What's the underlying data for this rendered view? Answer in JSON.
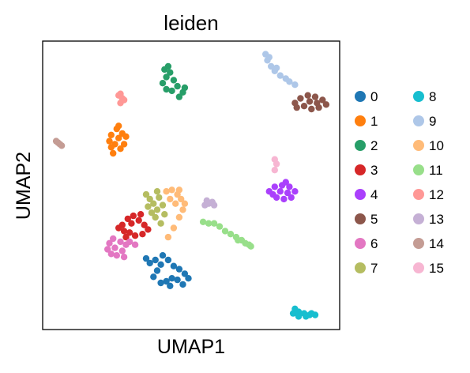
{
  "chart_data": {
    "type": "scatter",
    "title": "leiden",
    "xlabel": "UMAP1",
    "ylabel": "UMAP2",
    "grid": false,
    "legend_placement": "right",
    "legend_columns": 2,
    "series": [
      {
        "name": "0",
        "color": "#1f77b4",
        "points": [
          [
            4.2,
            -4.8
          ],
          [
            4.4,
            -4.4
          ],
          [
            4.6,
            -4.0
          ],
          [
            4.3,
            -3.7
          ],
          [
            4.0,
            -3.9
          ],
          [
            3.8,
            -3.6
          ],
          [
            4.7,
            -3.4
          ],
          [
            5.0,
            -3.7
          ],
          [
            5.3,
            -4.1
          ],
          [
            5.6,
            -4.3
          ],
          [
            5.9,
            -4.6
          ],
          [
            5.2,
            -4.9
          ],
          [
            4.9,
            -5.1
          ],
          [
            4.6,
            -5.2
          ],
          [
            5.5,
            -5.0
          ],
          [
            6.1,
            -4.9
          ],
          [
            5.8,
            -5.3
          ],
          [
            5.1,
            -5.4
          ]
        ]
      },
      {
        "name": "1",
        "color": "#ff7f0e",
        "points": [
          [
            2.1,
            3.9
          ],
          [
            2.3,
            4.3
          ],
          [
            2.5,
            4.6
          ],
          [
            2.2,
            4.9
          ],
          [
            1.9,
            4.5
          ],
          [
            1.8,
            4.1
          ],
          [
            2.4,
            3.6
          ],
          [
            2.0,
            3.3
          ],
          [
            2.6,
            3.9
          ],
          [
            2.7,
            4.4
          ],
          [
            2.3,
            5.1
          ],
          [
            1.9,
            3.7
          ]
        ]
      },
      {
        "name": "2",
        "color": "#279e68",
        "points": [
          [
            4.7,
            7.9
          ],
          [
            4.9,
            8.3
          ],
          [
            5.1,
            8.6
          ],
          [
            4.8,
            8.8
          ],
          [
            5.3,
            8.1
          ],
          [
            5.5,
            7.7
          ],
          [
            5.8,
            7.3
          ],
          [
            5.6,
            7.0
          ],
          [
            5.2,
            7.4
          ],
          [
            4.9,
            7.5
          ],
          [
            5.9,
            7.6
          ],
          [
            5.0,
            9.0
          ]
        ]
      },
      {
        "name": "3",
        "color": "#d62728",
        "points": [
          [
            2.5,
            -1.4
          ],
          [
            2.8,
            -1.0
          ],
          [
            3.1,
            -0.8
          ],
          [
            3.4,
            -1.1
          ],
          [
            3.7,
            -1.4
          ],
          [
            3.9,
            -1.7
          ],
          [
            3.6,
            -2.0
          ],
          [
            3.2,
            -2.1
          ],
          [
            2.9,
            -1.9
          ],
          [
            2.6,
            -1.8
          ],
          [
            2.3,
            -1.6
          ],
          [
            3.0,
            -1.3
          ],
          [
            3.5,
            -0.7
          ],
          [
            2.7,
            -2.2
          ]
        ]
      },
      {
        "name": "4",
        "color": "#aa40fc",
        "points": [
          [
            10.5,
            0.8
          ],
          [
            10.8,
            1.1
          ],
          [
            11.2,
            1.2
          ],
          [
            11.6,
            1.1
          ],
          [
            11.9,
            0.8
          ],
          [
            11.7,
            0.4
          ],
          [
            11.3,
            0.3
          ],
          [
            10.9,
            0.4
          ],
          [
            11.1,
            0.8
          ],
          [
            11.5,
            0.7
          ],
          [
            10.7,
            0.6
          ],
          [
            11.4,
            1.4
          ]
        ]
      },
      {
        "name": "5",
        "color": "#8c564b",
        "points": [
          [
            11.9,
            6.6
          ],
          [
            12.2,
            6.9
          ],
          [
            12.6,
            7.1
          ],
          [
            13.0,
            7.0
          ],
          [
            13.4,
            6.8
          ],
          [
            13.6,
            6.5
          ],
          [
            13.2,
            6.3
          ],
          [
            12.8,
            6.2
          ],
          [
            12.4,
            6.4
          ],
          [
            12.0,
            6.3
          ],
          [
            12.7,
            6.7
          ],
          [
            13.1,
            6.6
          ]
        ]
      },
      {
        "name": "6",
        "color": "#e377c2",
        "points": [
          [
            1.8,
            -2.6
          ],
          [
            2.0,
            -2.3
          ],
          [
            2.4,
            -2.5
          ],
          [
            2.7,
            -2.7
          ],
          [
            2.5,
            -3.1
          ],
          [
            2.2,
            -3.4
          ],
          [
            1.9,
            -3.3
          ],
          [
            1.7,
            -3.0
          ],
          [
            2.1,
            -2.9
          ],
          [
            2.9,
            -2.5
          ],
          [
            3.2,
            -2.7
          ],
          [
            2.6,
            -3.5
          ]
        ]
      },
      {
        "name": "7",
        "color": "#b5bd61",
        "points": [
          [
            3.8,
            0.6
          ],
          [
            4.0,
            0.3
          ],
          [
            4.2,
            0.0
          ],
          [
            4.4,
            -0.4
          ],
          [
            4.3,
            -0.9
          ],
          [
            4.6,
            -1.3
          ],
          [
            4.1,
            -0.6
          ],
          [
            3.9,
            -0.2
          ],
          [
            4.5,
            0.4
          ],
          [
            4.7,
            -0.1
          ],
          [
            4.8,
            -0.7
          ],
          [
            4.4,
            0.8
          ]
        ]
      },
      {
        "name": "8",
        "color": "#17becf",
        "points": [
          [
            11.8,
            -7.2
          ],
          [
            12.1,
            -7.1
          ],
          [
            12.4,
            -7.2
          ],
          [
            12.7,
            -7.3
          ],
          [
            13.0,
            -7.3
          ],
          [
            12.5,
            -7.4
          ],
          [
            12.1,
            -7.4
          ],
          [
            11.9,
            -6.9
          ],
          [
            12.8,
            -7.2
          ]
        ]
      },
      {
        "name": "9",
        "color": "#aec7e8",
        "points": [
          [
            10.3,
            9.8
          ],
          [
            10.4,
            9.4
          ],
          [
            10.6,
            9.0
          ],
          [
            10.8,
            8.7
          ],
          [
            11.1,
            8.4
          ],
          [
            11.4,
            8.2
          ],
          [
            10.5,
            9.6
          ],
          [
            10.9,
            8.9
          ],
          [
            11.6,
            8.0
          ],
          [
            11.9,
            7.8
          ]
        ]
      },
      {
        "name": "10",
        "color": "#ffbb78",
        "points": [
          [
            4.9,
            0.8
          ],
          [
            5.2,
            0.9
          ],
          [
            5.5,
            0.6
          ],
          [
            5.7,
            0.3
          ],
          [
            5.9,
            0.0
          ],
          [
            5.4,
            0.0
          ],
          [
            5.1,
            0.3
          ],
          [
            5.8,
            -0.4
          ],
          [
            5.6,
            -0.9
          ],
          [
            5.3,
            -1.6
          ],
          [
            5.0,
            -2.2
          ],
          [
            5.6,
            0.9
          ]
        ]
      },
      {
        "name": "11",
        "color": "#98df8a",
        "points": [
          [
            7.5,
            -1.3
          ],
          [
            7.8,
            -1.5
          ],
          [
            8.1,
            -1.8
          ],
          [
            8.4,
            -2.0
          ],
          [
            8.7,
            -2.2
          ],
          [
            9.0,
            -2.4
          ],
          [
            9.2,
            -2.6
          ],
          [
            9.5,
            -2.8
          ],
          [
            8.8,
            -2.4
          ],
          [
            9.4,
            -2.7
          ],
          [
            6.9,
            -1.2
          ],
          [
            7.2,
            -1.3
          ]
        ]
      },
      {
        "name": "12",
        "color": "#ff9896",
        "points": [
          [
            2.4,
            6.6
          ],
          [
            2.5,
            6.9
          ],
          [
            2.3,
            7.1
          ],
          [
            2.6,
            6.8
          ],
          [
            2.4,
            7.2
          ]
        ]
      },
      {
        "name": "13",
        "color": "#c5b0d5",
        "points": [
          [
            7.0,
            -0.1
          ],
          [
            7.2,
            0.0
          ],
          [
            7.4,
            0.1
          ],
          [
            7.5,
            -0.1
          ],
          [
            7.1,
            0.2
          ]
        ]
      },
      {
        "name": "14",
        "color": "#c49c94",
        "points": [
          [
            -1.1,
            4.1
          ],
          [
            -1.0,
            4.0
          ],
          [
            -0.9,
            3.9
          ],
          [
            -0.8,
            3.8
          ]
        ]
      },
      {
        "name": "15",
        "color": "#f7b6d2",
        "points": [
          [
            10.8,
            2.2
          ],
          [
            10.9,
            2.6
          ],
          [
            10.8,
            2.9
          ]
        ]
      }
    ]
  }
}
